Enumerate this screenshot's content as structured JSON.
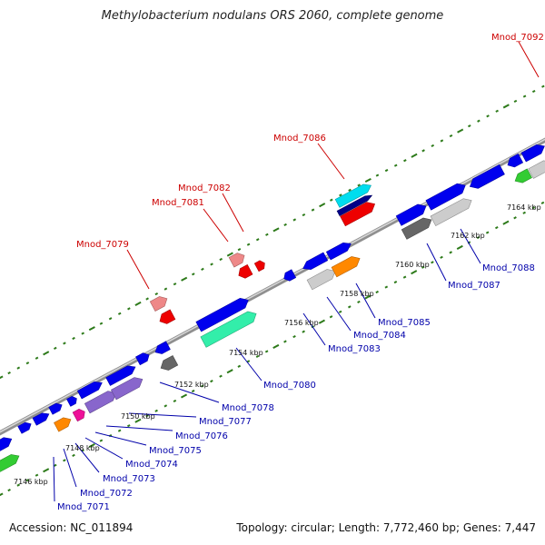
{
  "title": "Methylobacterium nodulans ORS 2060, complete genome",
  "footer": {
    "accession": "Accession: NC_011894",
    "topology": "Topology: circular; Length: 7,772,460 bp; Genes: 7,447"
  },
  "colors": {
    "top_label": "#cc0000",
    "bottom_label": "#0000aa",
    "backbone": "#8f8f8f",
    "dots": "#2d7a1a"
  },
  "tick_labels": [
    "7146 kbp",
    "7148 kbp",
    "7150 kbp",
    "7152 kbp",
    "7154 kbp",
    "7156 kbp",
    "7158 kbp",
    "7160 kbp",
    "7162 kbp",
    "7164 kbp"
  ],
  "top_genes": [
    "Mnod_7079",
    "Mnod_7081",
    "Mnod_7082",
    "Mnod_7086",
    "Mnod_7092"
  ],
  "bottom_genes": [
    "Mnod_7071",
    "Mnod_7072",
    "Mnod_7073",
    "Mnod_7074",
    "Mnod_7075",
    "Mnod_7076",
    "Mnod_7077",
    "Mnod_7078",
    "Mnod_7080",
    "Mnod_7083",
    "Mnod_7084",
    "Mnod_7085",
    "Mnod_7087",
    "Mnod_7088"
  ]
}
